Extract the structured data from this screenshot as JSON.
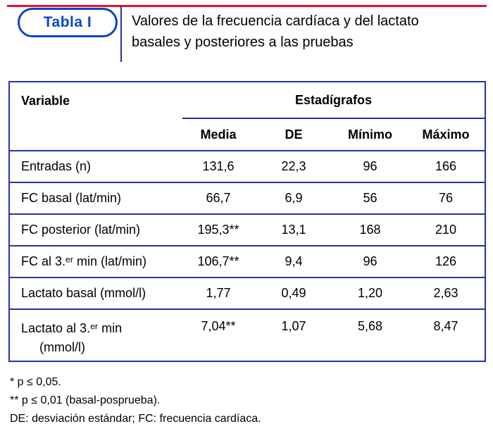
{
  "colors": {
    "red": "#e8112d",
    "blue_border": "#2634a0",
    "badge_blue": "#0b46c8",
    "text": "#000000"
  },
  "header": {
    "badge_label": "Tabla I",
    "title_line1": "Valores de la frecuencia cardíaca y del lactato",
    "title_line2": "basales y posteriores a las pruebas"
  },
  "table": {
    "col_variable": "Variable",
    "group_header": "Estadígrafos",
    "stat_headers": [
      "Media",
      "DE",
      "Mínimo",
      "Máximo"
    ],
    "rows": [
      {
        "label": "Entradas (n)",
        "media": "131,6",
        "de": "22,3",
        "min": "96",
        "max": "166"
      },
      {
        "label": "FC basal (lat/min)",
        "media": "66,7",
        "de": "6,9",
        "min": "56",
        "max": "76"
      },
      {
        "label": "FC posterior (lat/min)",
        "media": "195,3**",
        "de": "13,1",
        "min": "168",
        "max": "210"
      },
      {
        "label": "FC al 3.ᵉʳ min (lat/min)",
        "media": "106,7**",
        "de": "9,4",
        "min": "96",
        "max": "126"
      },
      {
        "label": "Lactato basal (mmol/l)",
        "media": "1,77",
        "de": "0,49",
        "min": "1,20",
        "max": "2,63"
      },
      {
        "label": "Lactato al 3.ᵉʳ min",
        "label2": "(mmol/l)",
        "media": "7,04**",
        "de": "1,07",
        "min": "5,68",
        "max": "8,47"
      }
    ]
  },
  "footnotes": [
    "* p ≤ 0,05.",
    "** p ≤ 0,01 (basal-posprueba).",
    "DE: desviación estándar; FC: frecuencia cardíaca."
  ]
}
